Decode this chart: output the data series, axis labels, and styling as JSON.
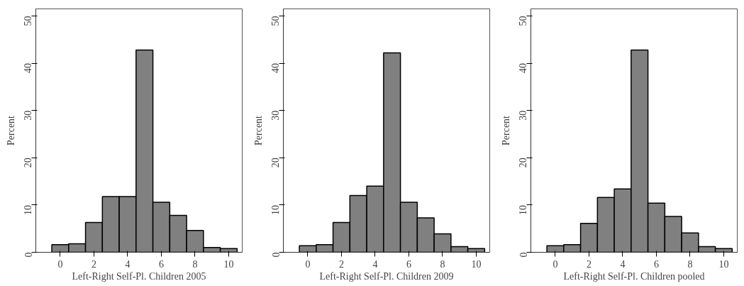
{
  "chart_data": [
    {
      "type": "histogram",
      "xlabel": "Left-Right Self-Pl. Children 2005",
      "ylabel": "Percent",
      "bins": [
        -0.5,
        0.5,
        1.5,
        2.5,
        3.5,
        4.5,
        5.5,
        6.5,
        7.5,
        8.5,
        9.5,
        10.5
      ],
      "values": [
        1.6,
        1.8,
        6.3,
        11.8,
        11.8,
        42.8,
        10.6,
        7.8,
        4.6,
        1.0,
        0.8
      ],
      "color": "#808080",
      "xlim": [
        -1.45,
        10.8
      ],
      "ylim": [
        0,
        51.5
      ],
      "xticks": [
        0,
        2,
        4,
        6,
        8,
        10
      ],
      "yticks": [
        0,
        10,
        20,
        30,
        40,
        50
      ],
      "grid": false
    },
    {
      "type": "histogram",
      "xlabel": "Left-Right Self-Pl. Children 2009",
      "ylabel": "Percent",
      "bins": [
        -0.5,
        0.5,
        1.5,
        2.5,
        3.5,
        4.5,
        5.5,
        6.5,
        7.5,
        8.5,
        9.5,
        10.5
      ],
      "values": [
        1.4,
        1.6,
        6.3,
        12.0,
        14.0,
        42.2,
        10.6,
        7.3,
        3.9,
        1.2,
        0.8
      ],
      "color": "#808080",
      "xlim": [
        -1.45,
        10.8
      ],
      "ylim": [
        0,
        51.5
      ],
      "xticks": [
        0,
        2,
        4,
        6,
        8,
        10
      ],
      "yticks": [
        0,
        10,
        20,
        30,
        40,
        50
      ],
      "grid": false
    },
    {
      "type": "histogram",
      "xlabel": "Left-Right Self-Pl. Children pooled",
      "ylabel": "Percent",
      "bins": [
        -0.5,
        0.5,
        1.5,
        2.5,
        3.5,
        4.5,
        5.5,
        6.5,
        7.5,
        8.5,
        9.5,
        10.5
      ],
      "values": [
        1.4,
        1.6,
        6.1,
        11.6,
        13.4,
        42.8,
        10.4,
        7.6,
        4.1,
        1.2,
        0.8
      ],
      "color": "#808080",
      "xlim": [
        -1.45,
        10.8
      ],
      "ylim": [
        0,
        51.5
      ],
      "xticks": [
        0,
        2,
        4,
        6,
        8,
        10
      ],
      "yticks": [
        0,
        10,
        20,
        30,
        40,
        50
      ],
      "grid": false
    }
  ]
}
